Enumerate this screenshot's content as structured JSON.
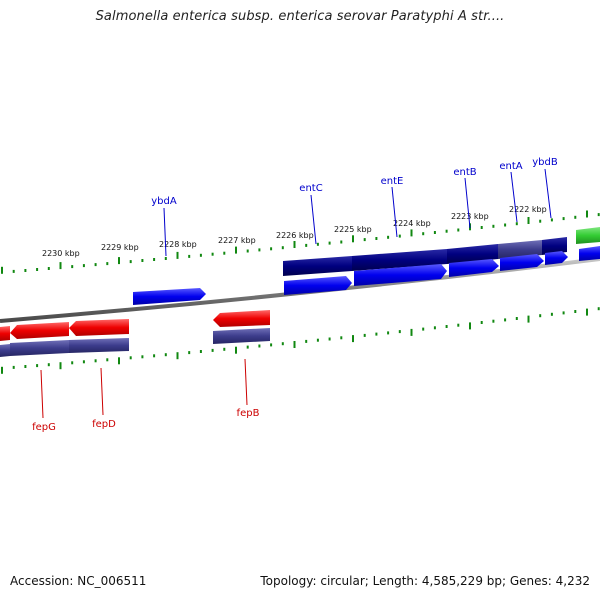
{
  "title": "Salmonella enterica subsp. enterica serovar Paratyphi A str....",
  "footer": {
    "accession": "Accession: NC_006511",
    "topology": "Topology: circular; Length: 4,585,229 bp; Genes: 4,232"
  },
  "colors": {
    "forward_cds": "#0000ee",
    "reverse_cds": "#ee0000",
    "forward_feature": "#000080",
    "reverse_feature": "#3c3c8c",
    "rna": "#33cc33",
    "backbone": "#888888",
    "tick": "#118811",
    "label_forward": "#0000cc",
    "label_reverse": "#cc0000"
  },
  "scale": {
    "ticks": [
      {
        "label": "2230 kbp"
      },
      {
        "label": "2229 kbp"
      },
      {
        "label": "2228 kbp"
      },
      {
        "label": "2227 kbp"
      },
      {
        "label": "2226 kbp"
      },
      {
        "label": "2225 kbp"
      },
      {
        "label": "2224 kbp"
      },
      {
        "label": "2223 kbp"
      },
      {
        "label": "2222 kbp"
      }
    ]
  },
  "genes_forward": [
    {
      "name": "ybdA"
    },
    {
      "name": "entC"
    },
    {
      "name": "entE"
    },
    {
      "name": "entB"
    },
    {
      "name": "entA"
    },
    {
      "name": "ybdB"
    }
  ],
  "genes_reverse": [
    {
      "name": "fepG"
    },
    {
      "name": "fepD"
    },
    {
      "name": "fepB"
    }
  ]
}
